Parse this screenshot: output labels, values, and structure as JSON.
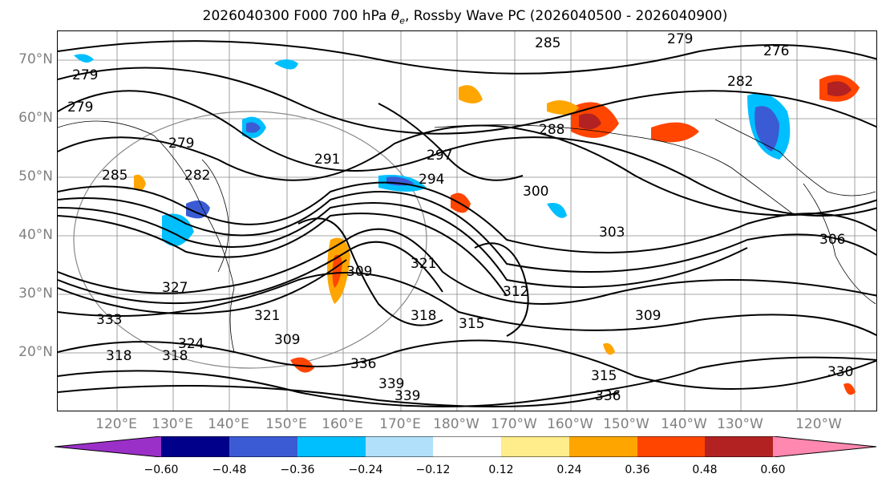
{
  "figure": {
    "title": "2026040300 F000 700 hPa θe, Rossby Wave PC (2026040500 - 2026040900)",
    "title_parts": {
      "prefix": "2026040300 F000 700 hPa ",
      "theta": "θ",
      "sub": "e",
      "suffix": ", Rossby Wave PC (2026040500 - 2026040900)"
    }
  },
  "map": {
    "lat_labels": [
      "70°N",
      "60°N",
      "50°N",
      "40°N",
      "30°N",
      "20°N"
    ],
    "lon_labels": [
      "120°E",
      "130°E",
      "140°E",
      "150°E",
      "160°E",
      "170°E",
      "180°W",
      "170°W",
      "160°W",
      "150°W",
      "140°W",
      "130°W",
      "120°W"
    ],
    "contour_labels": [
      "279",
      "279",
      "279",
      "282",
      "285",
      "276",
      "282",
      "279",
      "285",
      "288",
      "291",
      "294",
      "297",
      "300",
      "303",
      "306",
      "309",
      "309",
      "312",
      "315",
      "318",
      "318",
      "321",
      "321",
      "324",
      "327",
      "330",
      "333",
      "336",
      "336",
      "339",
      "339",
      "318",
      "315",
      "309"
    ]
  },
  "colorbar": {
    "ticks": [
      "−0.60",
      "−0.48",
      "−0.36",
      "−0.24",
      "−0.12",
      "0.12",
      "0.24",
      "0.36",
      "0.48",
      "0.60"
    ],
    "colors": [
      "#9b30c8",
      "#00008b",
      "#3b5bd5",
      "#00bfff",
      "#b0e0fa",
      "#ffffff",
      "#ffec8b",
      "#ffa500",
      "#ff4500",
      "#b22222",
      "#ff88b0"
    ]
  }
}
